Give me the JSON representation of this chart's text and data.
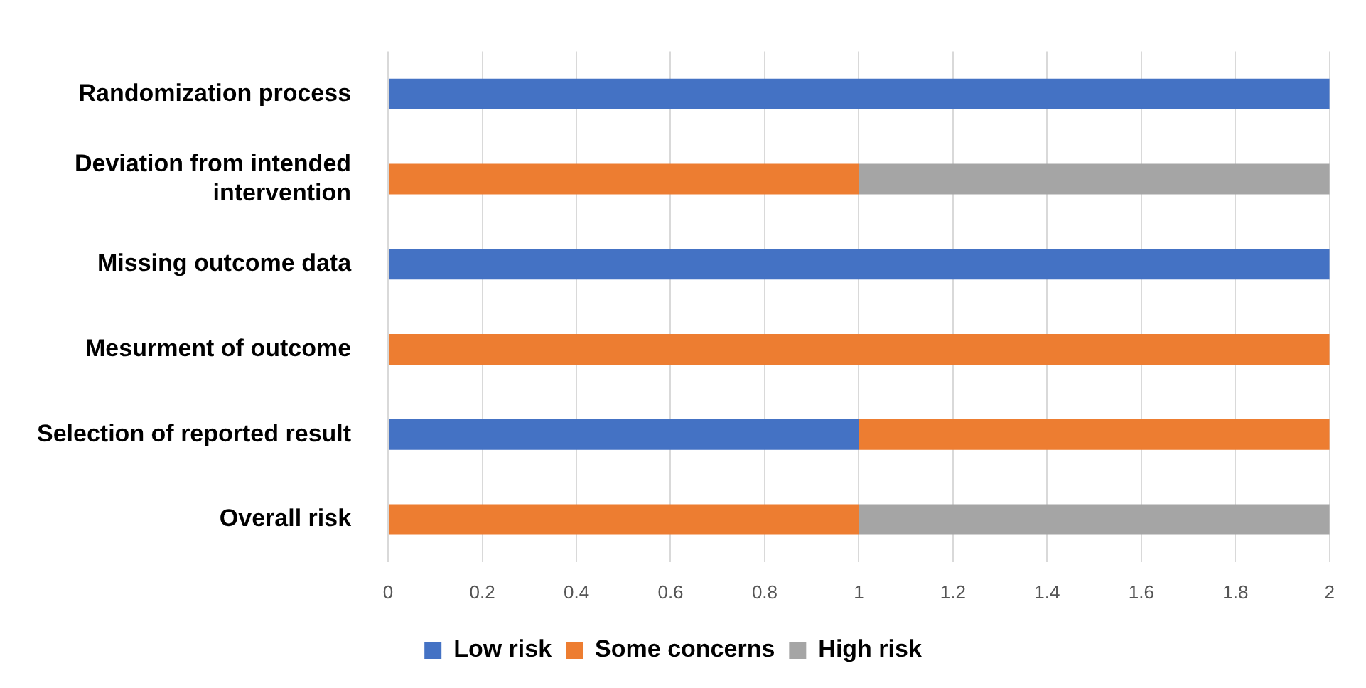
{
  "chart_data": {
    "type": "bar",
    "orientation": "horizontal",
    "stacked": true,
    "categories": [
      "Randomization process",
      "Deviation from intended intervention",
      "Missing outcome data",
      "Mesurment of outcome",
      "Selection of reported result",
      "Overall risk"
    ],
    "series": [
      {
        "name": "Low risk",
        "color": "#4472c4",
        "values": [
          2,
          0,
          2,
          0,
          1,
          0
        ]
      },
      {
        "name": "Some concerns",
        "color": "#ed7d31",
        "values": [
          0,
          1,
          0,
          2,
          1,
          1
        ]
      },
      {
        "name": "High risk",
        "color": "#a5a5a5",
        "values": [
          0,
          1,
          0,
          0,
          0,
          1
        ]
      }
    ],
    "xlim": [
      0,
      2
    ],
    "xticks": [
      0,
      0.2,
      0.4,
      0.6,
      0.8,
      1,
      1.2,
      1.4,
      1.6,
      1.8,
      2
    ],
    "grid": "x",
    "legend": "bottom"
  }
}
